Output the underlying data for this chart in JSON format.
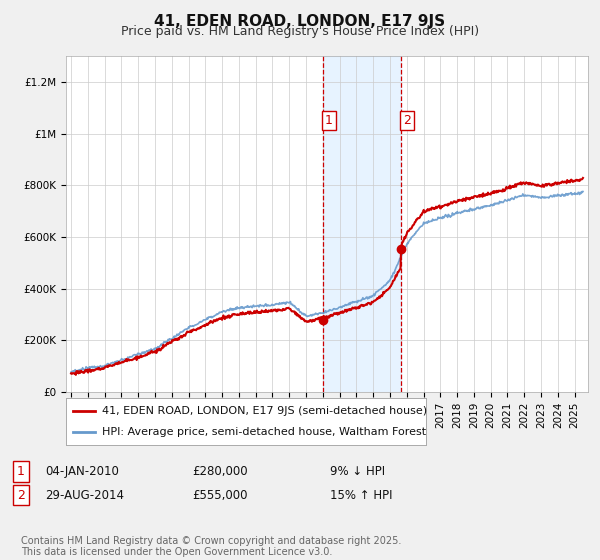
{
  "title": "41, EDEN ROAD, LONDON, E17 9JS",
  "subtitle": "Price paid vs. HM Land Registry's House Price Index (HPI)",
  "ylabel_ticks": [
    "£0",
    "£200K",
    "£400K",
    "£600K",
    "£800K",
    "£1M",
    "£1.2M"
  ],
  "ytick_values": [
    0,
    200000,
    400000,
    600000,
    800000,
    1000000,
    1200000
  ],
  "ylim": [
    0,
    1300000
  ],
  "xlim_start": 1994.7,
  "xlim_end": 2025.8,
  "sale1_date": 2010.03,
  "sale1_price": 280000,
  "sale1_pct": "9% ↓ HPI",
  "sale1_date_str": "04-JAN-2010",
  "sale2_date": 2014.66,
  "sale2_price": 555000,
  "sale2_pct": "15% ↑ HPI",
  "sale2_date_str": "29-AUG-2014",
  "hpi_color": "#6699cc",
  "price_color": "#cc0000",
  "shade_color": "#ddeeff",
  "vline_color": "#cc0000",
  "legend_label_price": "41, EDEN ROAD, LONDON, E17 9JS (semi-detached house)",
  "legend_label_hpi": "HPI: Average price, semi-detached house, Waltham Forest",
  "footnote": "Contains HM Land Registry data © Crown copyright and database right 2025.\nThis data is licensed under the Open Government Licence v3.0.",
  "background_color": "#f0f0f0",
  "plot_background": "#ffffff",
  "grid_color": "#cccccc",
  "title_fontsize": 11,
  "subtitle_fontsize": 9,
  "tick_fontsize": 7.5,
  "legend_fontsize": 8,
  "footnote_fontsize": 7
}
